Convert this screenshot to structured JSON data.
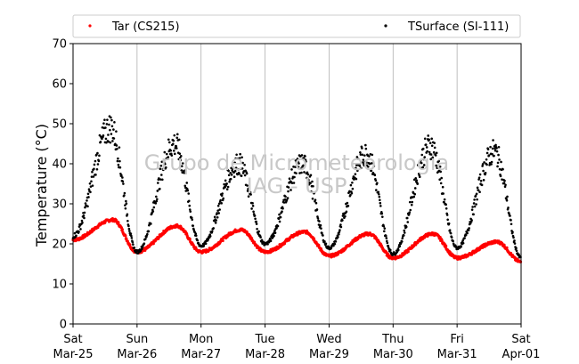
{
  "chart_data": {
    "type": "scatter",
    "ylabel": "Temperature (°C)",
    "ylim": [
      0,
      70
    ],
    "yticks": [
      0,
      10,
      20,
      30,
      40,
      50,
      60,
      70
    ],
    "xlim": [
      "2016-03-25",
      "2016-04-01"
    ],
    "xticks": [
      {
        "day": "Sat",
        "date": "Mar-25"
      },
      {
        "day": "Sun",
        "date": "Mar-26"
      },
      {
        "day": "Mon",
        "date": "Mar-27"
      },
      {
        "day": "Tue",
        "date": "Mar-28"
      },
      {
        "day": "Wed",
        "date": "Mar-29"
      },
      {
        "day": "Thu",
        "date": "Mar-30"
      },
      {
        "day": "Fri",
        "date": "Mar-31"
      },
      {
        "day": "Sat",
        "date": "Apr-01"
      }
    ],
    "grid": "vertical",
    "legend_position": "top",
    "watermark": [
      "Grupo de Micrometeorologia",
      "IAG - USP"
    ],
    "series": [
      {
        "name": "Tar (CS215)",
        "color": "#ff0000",
        "x": [
          "2016-03-25",
          "2016-03-25 15:00",
          "2016-03-26",
          "2016-03-26 15:00",
          "2016-03-27",
          "2016-03-27 15:00",
          "2016-03-28",
          "2016-03-28 15:00",
          "2016-03-29",
          "2016-03-29 15:00",
          "2016-03-30",
          "2016-03-30 15:00",
          "2016-03-31",
          "2016-03-31 15:00",
          "2016-04-01"
        ],
        "y": [
          21,
          26,
          18,
          24.5,
          18,
          23.5,
          18,
          23,
          17,
          22.5,
          16.5,
          22.5,
          16.5,
          20.5,
          15.5
        ]
      },
      {
        "name": "TSurface (SI-111)",
        "color": "#000000",
        "x": [
          "2016-03-25",
          "2016-03-25 14:00",
          "2016-03-26",
          "2016-03-26 14:00",
          "2016-03-27",
          "2016-03-27 14:00",
          "2016-03-28",
          "2016-03-28 14:00",
          "2016-03-29",
          "2016-03-29 14:00",
          "2016-03-30",
          "2016-03-30 14:00",
          "2016-03-31",
          "2016-03-31 14:00",
          "2016-04-01"
        ],
        "y": [
          22,
          49,
          18,
          45,
          19.5,
          40,
          20,
          40,
          19,
          42.5,
          17.5,
          44.5,
          19,
          43,
          16.5
        ]
      }
    ]
  }
}
